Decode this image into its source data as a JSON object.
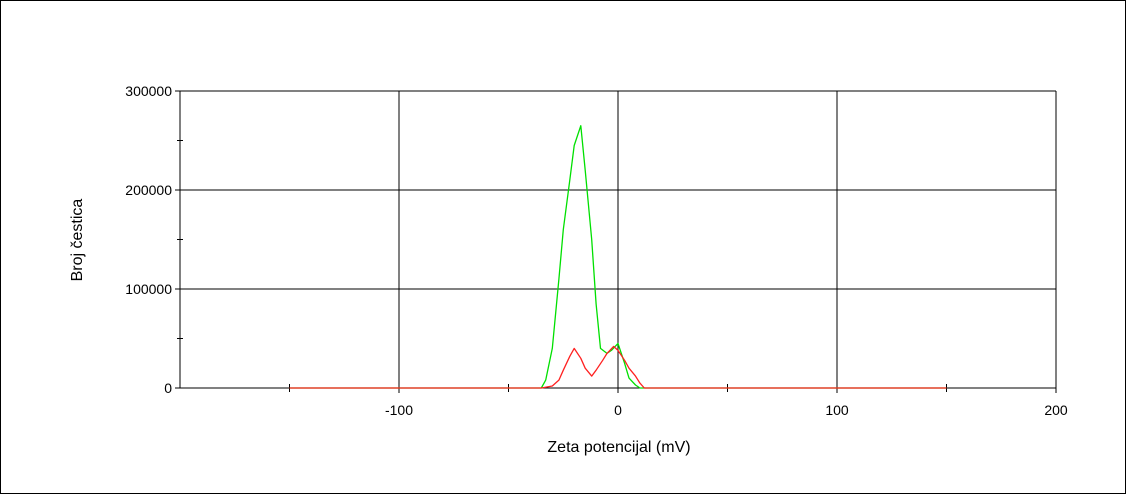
{
  "chart_data": {
    "type": "line",
    "title": "",
    "xlabel": "Zeta potencijal (mV)",
    "ylabel": "Broj čestica",
    "xlim": [
      -200,
      200
    ],
    "ylim": [
      0,
      300000
    ],
    "x_ticks": [
      -100,
      0,
      100,
      200
    ],
    "x_tick_labels": [
      "-100",
      "0",
      "100",
      "200"
    ],
    "y_ticks": [
      0,
      100000,
      200000,
      300000
    ],
    "y_tick_labels": [
      "0",
      "100000",
      "200000",
      "300000"
    ],
    "grid": true,
    "legend": null,
    "series": [
      {
        "color": "#00e000",
        "x": [
          -150,
          -40,
          -35,
          -33,
          -30,
          -27,
          -25,
          -22,
          -20,
          -17,
          -15,
          -12,
          -10,
          -8,
          -5,
          -3,
          0,
          3,
          5,
          8,
          10,
          15,
          20,
          150
        ],
        "y": [
          0,
          0,
          0,
          8000,
          40000,
          110000,
          160000,
          210000,
          245000,
          265000,
          220000,
          150000,
          85000,
          40000,
          35000,
          38000,
          45000,
          25000,
          10000,
          3000,
          0,
          0,
          0,
          0
        ]
      },
      {
        "color": "#ff2020",
        "x": [
          -150,
          -35,
          -30,
          -27,
          -25,
          -22,
          -20,
          -17,
          -15,
          -12,
          -10,
          -7,
          -5,
          -2,
          0,
          3,
          5,
          8,
          10,
          12,
          150
        ],
        "y": [
          0,
          0,
          2000,
          8000,
          18000,
          32000,
          40000,
          30000,
          20000,
          12000,
          18000,
          28000,
          35000,
          42000,
          38000,
          28000,
          20000,
          12000,
          5000,
          0,
          0
        ]
      }
    ]
  }
}
